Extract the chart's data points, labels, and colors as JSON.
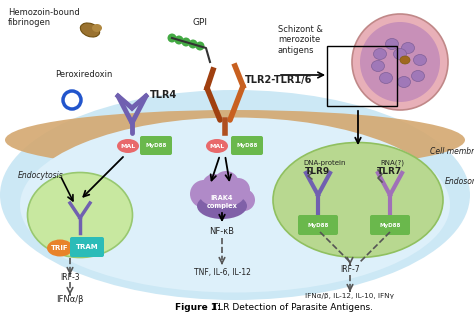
{
  "title_bold": "Figure 1:",
  "title_rest": " TLR Detection of Parasite Antigens.",
  "labels": {
    "hemozoin": "Hemozoin-bound\nfibrinogen",
    "peroxiredoxin": "Peroxiredoxin",
    "GPI": "GPI",
    "schizont": "Schizont &\nmerozoite\nantigens",
    "cell_membrane": "Cell membrane",
    "endosome": "Endosome",
    "endocytosis": "Endocytosis",
    "TLR4": "TLR4",
    "TLR2_TLR16": "TLR2-TLR1/6",
    "TLR9": "TLR9",
    "TLR7": "TLR7",
    "MAL": "MAL",
    "MyD88": "MyD88",
    "TRIF": "TRIF",
    "TRAM": "TRAM",
    "IRAK4": "IRAK4\ncomplex",
    "NFkB": "NF-κB",
    "IRF3": "IRF-3",
    "IRF7": "IRF-7",
    "DNA_protein": "DNA-protein",
    "RNA": "RNA(?)",
    "output1": "IFNα/β",
    "output2": "TNF, IL-6, IL-12",
    "output3": "IFNα/β, IL-12, IL-10, IFNγ"
  },
  "colors": {
    "MAL": "#e8696b",
    "MyD88": "#6ab84c",
    "TRIF": "#e8832a",
    "TRAM": "#2bbcb8",
    "IRAK4_top": "#b08ac8",
    "IRAK4_bot": "#8060a8",
    "TLR4_color": "#7060b0",
    "TLR2_color": "#b06020",
    "TLR9_color": "#7060b0",
    "TLR7_color": "#a070b8",
    "cell_bg": "#cce8f5",
    "cell_inner": "#ddf0fa",
    "membrane": "#d4a870",
    "nucleus_fill": "#c8e8a0",
    "nucleus_edge": "#98c870",
    "endosome_fill": "#b8d890",
    "endosome_edge": "#90c060",
    "schizont_outer": "#e8b0b8",
    "schizont_inner": "#c890b8",
    "schizont_cells": "#a078b8",
    "arrow_solid": "#333333",
    "arrow_dashed": "#555555",
    "text_dark": "#222222",
    "text_blue": "#1a6ab0",
    "white": "#ffffff"
  }
}
